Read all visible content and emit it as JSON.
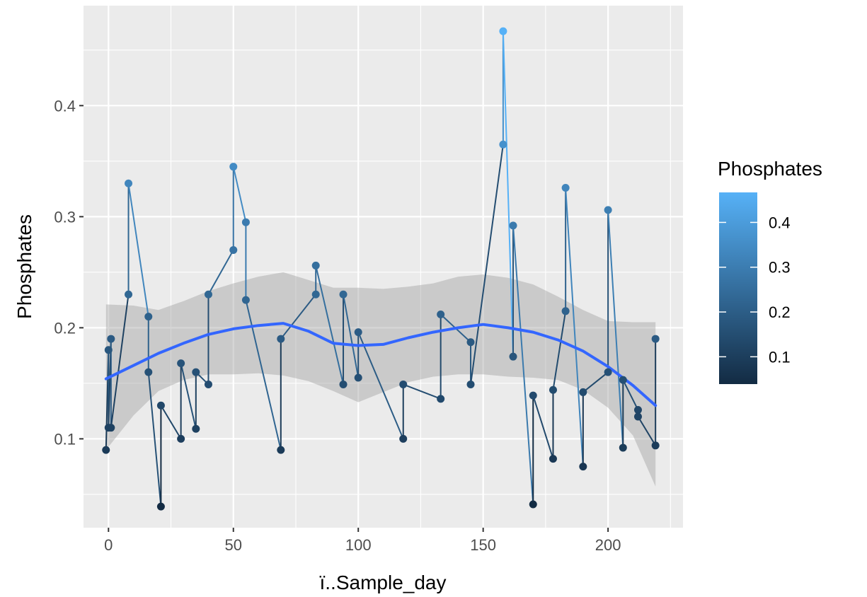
{
  "chart_data": {
    "type": "line",
    "title": "",
    "xlabel": "ï..Sample_day",
    "ylabel": "Phosphates",
    "xlim": [
      -10,
      230
    ],
    "ylim": [
      0.02,
      0.49
    ],
    "x_ticks": [
      0,
      50,
      100,
      150,
      200
    ],
    "y_ticks": [
      0.1,
      0.2,
      0.3,
      0.4
    ],
    "x_tick_labels": [
      "0",
      "50",
      "100",
      "150",
      "200"
    ],
    "y_tick_labels": [
      "0.1",
      "0.2",
      "0.3",
      "0.4"
    ],
    "grid": true,
    "legend": {
      "title": "Phosphates",
      "type": "colorbar",
      "placement": "right",
      "range": [
        0.039,
        0.467
      ],
      "breaks": [
        0.1,
        0.2,
        0.3,
        0.4
      ],
      "break_labels": [
        "0.1",
        "0.2",
        "0.3",
        "0.4"
      ],
      "color_low": "#132B43",
      "color_high": "#56B1F7"
    },
    "series": [
      {
        "geom": "path_points",
        "color_mapped_to_y": true,
        "x": [
          -1,
          0,
          0,
          1,
          1,
          8,
          8,
          16,
          16,
          21,
          21,
          29,
          29,
          35,
          35,
          40,
          40,
          50,
          50,
          55,
          55,
          69,
          69,
          83,
          83,
          94,
          94,
          100,
          100,
          118,
          118,
          133,
          133,
          145,
          145,
          158,
          158,
          162,
          162,
          170,
          170,
          178,
          178,
          183,
          183,
          190,
          190,
          200,
          200,
          206,
          206,
          212,
          212,
          219,
          219
        ],
        "y": [
          0.09,
          0.18,
          0.11,
          0.19,
          0.11,
          0.23,
          0.33,
          0.21,
          0.16,
          0.039,
          0.13,
          0.1,
          0.168,
          0.109,
          0.16,
          0.149,
          0.23,
          0.27,
          0.345,
          0.295,
          0.225,
          0.09,
          0.19,
          0.23,
          0.256,
          0.149,
          0.23,
          0.155,
          0.196,
          0.1,
          0.149,
          0.136,
          0.212,
          0.187,
          0.149,
          0.365,
          0.467,
          0.174,
          0.292,
          0.041,
          0.139,
          0.082,
          0.144,
          0.215,
          0.326,
          0.075,
          0.142,
          0.16,
          0.306,
          0.092,
          0.153,
          0.126,
          0.12,
          0.094,
          0.19
        ]
      },
      {
        "geom": "smooth",
        "color": "#3366FF",
        "ribbon_color": "#999999",
        "x": [
          -1,
          10,
          20,
          30,
          40,
          50,
          60,
          70,
          80,
          90,
          100,
          110,
          120,
          130,
          140,
          150,
          160,
          170,
          180,
          190,
          200,
          210,
          219
        ],
        "y": [
          0.154,
          0.166,
          0.177,
          0.186,
          0.194,
          0.199,
          0.202,
          0.204,
          0.197,
          0.186,
          0.184,
          0.185,
          0.191,
          0.196,
          0.2,
          0.203,
          0.2,
          0.196,
          0.189,
          0.179,
          0.165,
          0.148,
          0.13
        ],
        "ymin": [
          0.09,
          0.121,
          0.143,
          0.153,
          0.158,
          0.158,
          0.159,
          0.157,
          0.152,
          0.143,
          0.133,
          0.142,
          0.151,
          0.156,
          0.158,
          0.158,
          0.156,
          0.155,
          0.153,
          0.144,
          0.128,
          0.103,
          0.057
        ],
        "ymax": [
          0.221,
          0.22,
          0.216,
          0.224,
          0.233,
          0.24,
          0.246,
          0.25,
          0.243,
          0.236,
          0.236,
          0.235,
          0.237,
          0.24,
          0.246,
          0.248,
          0.245,
          0.239,
          0.228,
          0.216,
          0.206,
          0.205,
          0.205
        ]
      }
    ]
  }
}
